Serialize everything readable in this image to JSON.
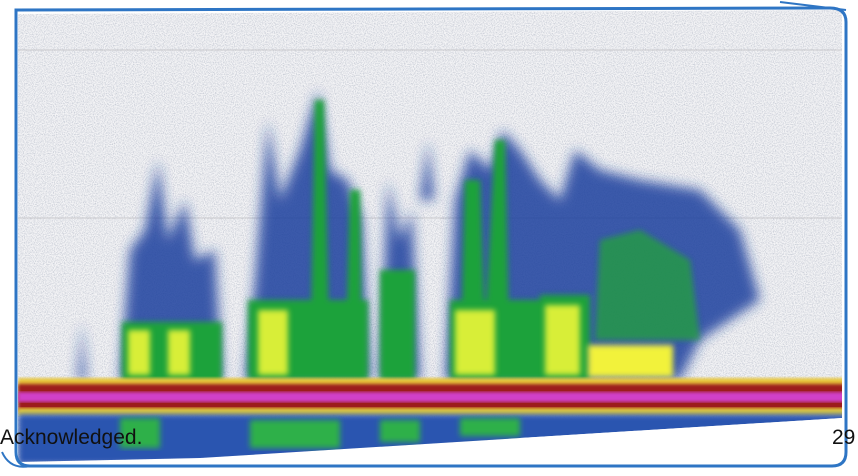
{
  "caption": "Acknowledged.",
  "page_number": "29"
}
